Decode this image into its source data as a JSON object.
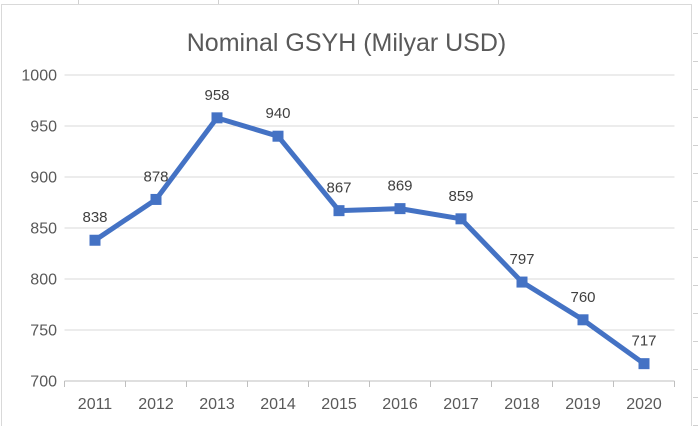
{
  "chart_data": {
    "type": "line",
    "title": "Nominal GSYH (Milyar USD)",
    "categories": [
      "2011",
      "2012",
      "2013",
      "2014",
      "2015",
      "2016",
      "2017",
      "2018",
      "2019",
      "2020"
    ],
    "values": [
      838,
      878,
      958,
      940,
      867,
      869,
      859,
      797,
      760,
      717
    ],
    "y_ticks": [
      1000,
      950,
      900,
      850,
      800,
      750,
      700
    ],
    "ylim": [
      700,
      1000
    ],
    "xlabel": "",
    "ylabel": "",
    "legend": "none",
    "grid": true,
    "data_labels": true,
    "marker": "square",
    "colors": {
      "line": "#4472C4",
      "marker": "#4472C4",
      "grid": "#D9D9D9",
      "axis": "#BFBFBF",
      "title_text": "#595959",
      "tick_text": "#595959",
      "label_text": "#404040"
    }
  }
}
